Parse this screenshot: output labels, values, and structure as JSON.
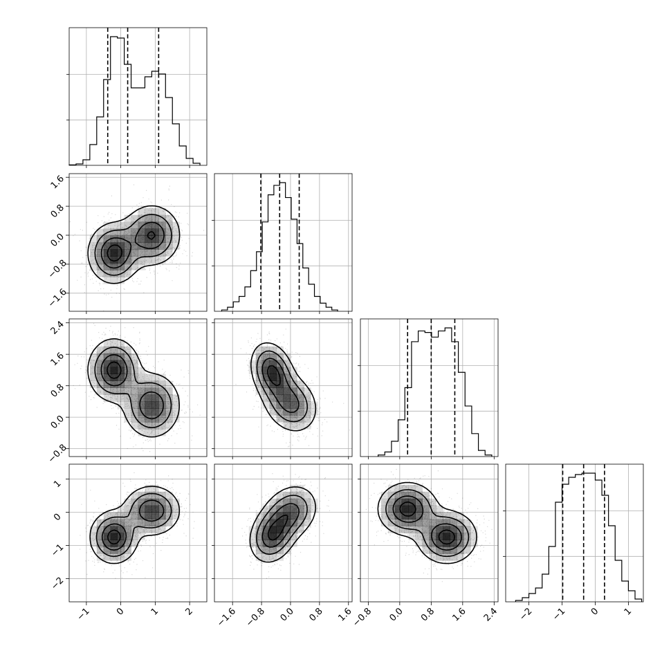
{
  "chart_data": {
    "type": "corner",
    "parameters": 4,
    "colors": {
      "line": "#000000",
      "grid": "#b0b0b0",
      "points": "#000000",
      "background": "#ffffff"
    },
    "grid": true,
    "axes": [
      {
        "range": [
          -1.5,
          2.5
        ],
        "ticks": [
          -1,
          0,
          1,
          2
        ],
        "tick_labels": [
          "−1",
          "0",
          "1",
          "2"
        ]
      },
      {
        "range": [
          -2.1,
          1.7
        ],
        "ticks": [
          -1.6,
          -0.8,
          0.0,
          0.8,
          1.6
        ],
        "tick_labels": [
          "−1.6",
          "−0.8",
          "0.0",
          "0.8",
          "1.6"
        ]
      },
      {
        "range": [
          -1.0,
          2.5
        ],
        "ticks": [
          -0.8,
          0.0,
          0.8,
          1.6,
          2.4
        ],
        "tick_labels": [
          "−0.8",
          "0.0",
          "0.8",
          "1.6",
          "2.4"
        ]
      },
      {
        "range": [
          -2.7,
          1.45
        ],
        "ticks": [
          -2,
          -1,
          0,
          1
        ],
        "tick_labels": [
          "−2",
          "−1",
          "0",
          "1"
        ]
      }
    ],
    "histograms": [
      {
        "param": 0,
        "quantiles": [
          -0.38,
          0.2,
          1.1
        ],
        "bin_edges": [
          -1.5,
          -1.3,
          -1.1,
          -0.9,
          -0.7,
          -0.5,
          -0.3,
          -0.1,
          0.1,
          0.3,
          0.5,
          0.7,
          0.9,
          1.1,
          1.3,
          1.5,
          1.7,
          1.9,
          2.1,
          2.3
        ],
        "counts": [
          0.3,
          1.0,
          4,
          15,
          35,
          62,
          93,
          92,
          73,
          56,
          56,
          64,
          68,
          66,
          49,
          30,
          14,
          5,
          1.5
        ]
      },
      {
        "param": 1,
        "quantiles": [
          -0.82,
          -0.3,
          0.24
        ],
        "bin_edges": [
          -1.9,
          -1.74,
          -1.58,
          -1.42,
          -1.26,
          -1.1,
          -0.94,
          -0.78,
          -0.62,
          -0.46,
          -0.3,
          -0.14,
          0.02,
          0.18,
          0.34,
          0.5,
          0.66,
          0.82,
          0.98,
          1.14,
          1.3
        ],
        "counts": [
          1,
          3,
          7,
          11,
          18,
          30,
          44,
          66,
          86,
          93,
          95,
          84,
          68,
          50,
          32,
          20,
          11,
          6,
          3,
          1
        ]
      },
      {
        "param": 2,
        "quantiles": [
          0.2,
          0.8,
          1.4
        ],
        "bin_edges": [
          -0.55,
          -0.38,
          -0.21,
          -0.04,
          0.13,
          0.3,
          0.47,
          0.64,
          0.81,
          0.98,
          1.15,
          1.32,
          1.49,
          1.66,
          1.83,
          2.0,
          2.17,
          2.34
        ],
        "counts": [
          1,
          3,
          10,
          24,
          45,
          75,
          82,
          81,
          78,
          82,
          84,
          75,
          55,
          33,
          15,
          4,
          1
        ]
      },
      {
        "param": 3,
        "quantiles": [
          -0.98,
          -0.35,
          0.28
        ],
        "bin_edges": [
          -2.4,
          -2.2,
          -2.0,
          -1.8,
          -1.6,
          -1.4,
          -1.2,
          -1.0,
          -0.8,
          -0.6,
          -0.4,
          -0.2,
          0.0,
          0.2,
          0.4,
          0.6,
          0.8,
          1.0,
          1.2,
          1.4
        ],
        "counts": [
          1,
          3,
          6,
          10,
          20,
          40,
          72,
          85,
          90,
          92,
          93,
          93,
          88,
          77,
          55,
          30,
          15,
          8,
          2
        ]
      }
    ],
    "pairs": [
      {
        "x": 0,
        "y": 1,
        "components": [
          {
            "mean": [
              -0.2,
              -0.5
            ],
            "sd": [
              0.38,
              0.42
            ],
            "rho": 0.0,
            "weight": 0.5
          },
          {
            "mean": [
              0.9,
              0.0
            ],
            "sd": [
              0.42,
              0.42
            ],
            "rho": 0.0,
            "weight": 0.5
          }
        ]
      },
      {
        "x": 0,
        "y": 2,
        "components": [
          {
            "mean": [
              -0.2,
              1.2
            ],
            "sd": [
              0.38,
              0.4
            ],
            "rho": 0.0,
            "weight": 0.5
          },
          {
            "mean": [
              0.9,
              0.3
            ],
            "sd": [
              0.42,
              0.42
            ],
            "rho": 0.0,
            "weight": 0.5
          }
        ]
      },
      {
        "x": 1,
        "y": 2,
        "components": [
          {
            "mean": [
              -0.5,
              1.15
            ],
            "sd": [
              0.3,
              0.38
            ],
            "rho": -0.25,
            "weight": 0.5
          },
          {
            "mean": [
              0.0,
              0.35
            ],
            "sd": [
              0.38,
              0.38
            ],
            "rho": -0.2,
            "weight": 0.5
          }
        ]
      },
      {
        "x": 0,
        "y": 3,
        "components": [
          {
            "mean": [
              -0.2,
              -0.75
            ],
            "sd": [
              0.35,
              0.4
            ],
            "rho": 0.0,
            "weight": 0.5
          },
          {
            "mean": [
              0.9,
              0.05
            ],
            "sd": [
              0.42,
              0.38
            ],
            "rho": 0.0,
            "weight": 0.5
          }
        ]
      },
      {
        "x": 1,
        "y": 3,
        "components": [
          {
            "mean": [
              -0.5,
              -0.7
            ],
            "sd": [
              0.32,
              0.42
            ],
            "rho": 0.2,
            "weight": 0.5
          },
          {
            "mean": [
              0.0,
              0.0
            ],
            "sd": [
              0.38,
              0.42
            ],
            "rho": 0.2,
            "weight": 0.5
          }
        ]
      },
      {
        "x": 2,
        "y": 3,
        "components": [
          {
            "mean": [
              0.2,
              0.1
            ],
            "sd": [
              0.38,
              0.4
            ],
            "rho": 0.0,
            "weight": 0.5
          },
          {
            "mean": [
              1.2,
              -0.75
            ],
            "sd": [
              0.38,
              0.4
            ],
            "rho": 0.0,
            "weight": 0.5
          }
        ]
      }
    ]
  }
}
